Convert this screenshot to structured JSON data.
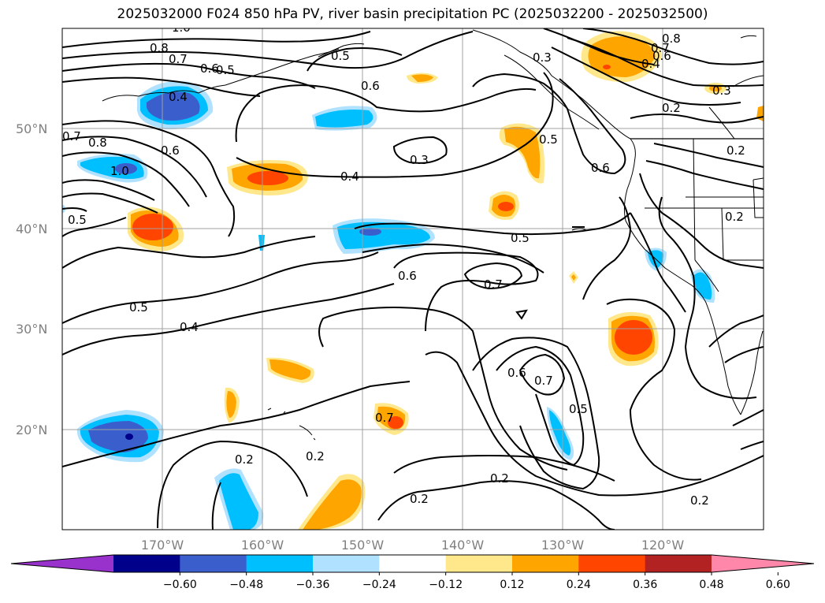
{
  "title": "2025032000 F024 850 hPa PV, river basin precipitation PC (2025032200 - 2025032500)",
  "latitude_labels": [
    "50°N",
    "40°N",
    "30°N",
    "20°N"
  ],
  "longitude_labels": [
    "170°W",
    "160°W",
    "150°W",
    "140°W",
    "130°W",
    "120°W"
  ],
  "contour_labels": [
    "1.0",
    "0.8",
    "0.7",
    "0.6",
    "0.5",
    "0.5",
    "0.6",
    "0.4",
    "0.3",
    "0.8",
    "0.7",
    "0.6",
    "0.4",
    "0.3",
    "0.2",
    "0.7",
    "0.8",
    "0.6",
    "1.0",
    "0.5",
    "0.3",
    "0.4",
    "0.5",
    "0.6",
    "0.5",
    "0.6",
    "0.7",
    "0.5",
    "0.4",
    "0.2",
    "0.6",
    "0.7",
    "0.5",
    "0.7",
    "0.2",
    "0.2",
    "0.2",
    "0.2",
    "0.2",
    "0.2"
  ],
  "colorbar": {
    "ticks": [
      "−0.60",
      "−0.48",
      "−0.36",
      "−0.24",
      "−0.12",
      "0.12",
      "0.24",
      "0.36",
      "0.48",
      "0.60"
    ],
    "colors": [
      "#9932cc",
      "#00008b",
      "#3a5fcd",
      "#00bfff",
      "#b0e2ff",
      "#ffffff",
      "#ffe88c",
      "#ffa500",
      "#ff4500",
      "#b22222",
      "#ff88aa"
    ]
  }
}
